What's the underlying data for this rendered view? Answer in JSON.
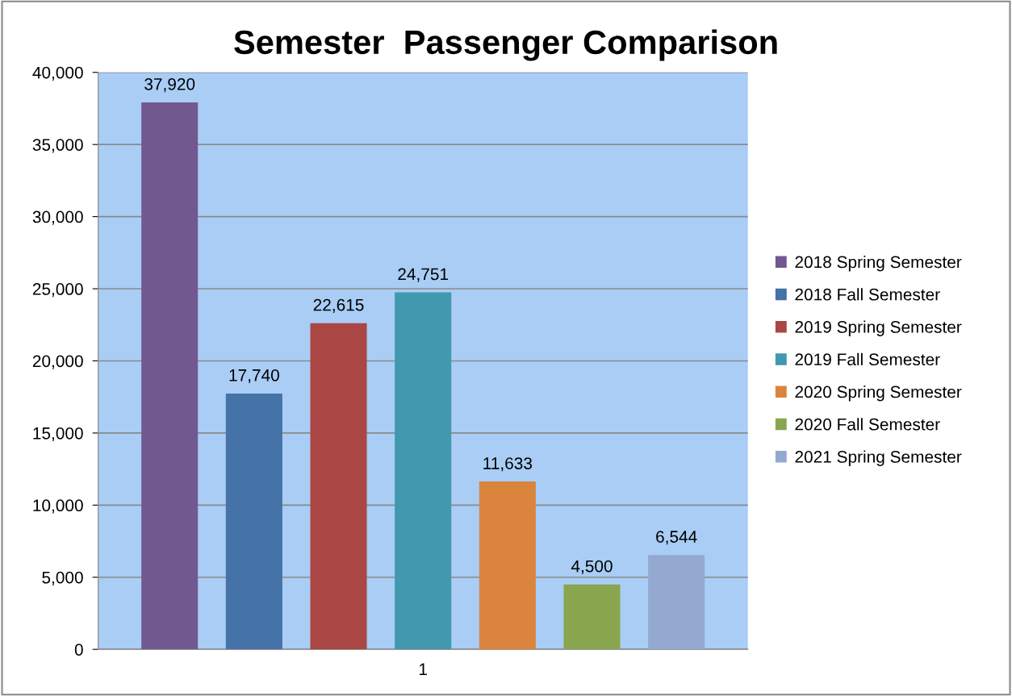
{
  "chart_data": {
    "type": "bar",
    "title": "Semester  Passenger Comparison",
    "categories": [
      "1"
    ],
    "series": [
      {
        "name": "2018 Spring Semester",
        "color": "#71598f",
        "values": [
          37920
        ],
        "value_labels": [
          "37,920"
        ]
      },
      {
        "name": "2018 Fall Semester",
        "color": "#4572a7",
        "values": [
          17740
        ],
        "value_labels": [
          "17,740"
        ]
      },
      {
        "name": "2019 Spring Semester",
        "color": "#aa4643",
        "values": [
          22615
        ],
        "value_labels": [
          "22,615"
        ]
      },
      {
        "name": "2019 Fall Semester",
        "color": "#4198af",
        "values": [
          24751
        ],
        "value_labels": [
          "24,751"
        ]
      },
      {
        "name": "2020 Spring Semester",
        "color": "#db843d",
        "values": [
          11633
        ],
        "value_labels": [
          "11,633"
        ]
      },
      {
        "name": "2020 Fall Semester",
        "color": "#89a54e",
        "values": [
          4500
        ],
        "value_labels": [
          "4,500"
        ]
      },
      {
        "name": "2021 Spring Semester",
        "color": "#93a9cf",
        "values": [
          6544
        ],
        "value_labels": [
          "6,544"
        ]
      }
    ],
    "ylim": [
      0,
      40000
    ],
    "yticks": [
      0,
      {
        "value": 5000,
        "label": "5,000"
      },
      {
        "value": 10000,
        "label": "10,000"
      },
      {
        "value": 15000,
        "label": "15,000"
      },
      {
        "value": 20000,
        "label": "20,000"
      },
      {
        "value": 25000,
        "label": "25,000"
      },
      {
        "value": 30000,
        "label": "30,000"
      },
      {
        "value": 35000,
        "label": "35,000"
      },
      {
        "value": 40000,
        "label": "40,000"
      }
    ],
    "grid": "y",
    "legend": "right"
  }
}
